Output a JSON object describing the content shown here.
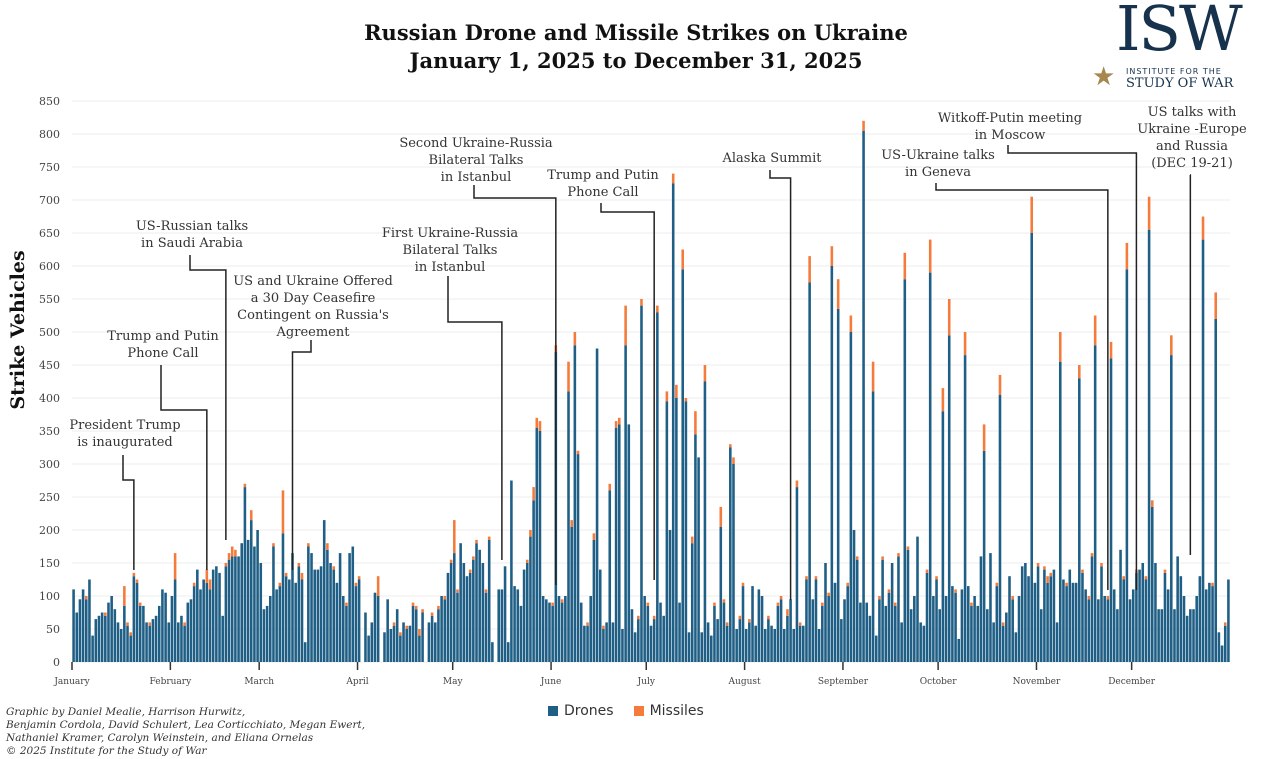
{
  "header": {
    "title": "Russian Drone and Missile Strikes on Ukraine",
    "subtitle": "January 1, 2025 to December 31, 2025"
  },
  "logo": {
    "text": "ISW",
    "line1": "INSTITUTE FOR THE",
    "line2": "STUDY OF WAR"
  },
  "credit": "Graphic by Daniel Mealie, Harrison Hurwitz,\nBenjamin Cordola, David Schulert, Lea Corticchiato, Megan Ewert,\nNathaniel Kramer, Carolyn Weinstein, and Eliana Ornelas\n© 2025 Institute for the Study of War",
  "chart_data": {
    "type": "bar",
    "stacked": true,
    "title": "Russian Drone and Missile Strikes on Ukraine",
    "subtitle": "January 1, 2025 to December 31, 2025",
    "xlabel": "",
    "ylabel": "Strike Vehicles",
    "ylim": [
      0,
      850
    ],
    "yticks": [
      0,
      50,
      100,
      150,
      200,
      250,
      300,
      350,
      400,
      450,
      500,
      550,
      600,
      650,
      700,
      750,
      800,
      850
    ],
    "grid": true,
    "legend": "bottom",
    "date_range": [
      "2025-01-01",
      "2025-12-31"
    ],
    "month_labels": [
      "January",
      "February",
      "March",
      "April",
      "May",
      "June",
      "July",
      "August",
      "September",
      "October",
      "November",
      "December"
    ],
    "colors": {
      "Drones": "#1f5f86",
      "Missiles": "#f47b3c"
    },
    "series": [
      {
        "name": "Drones",
        "values": [
          110,
          75,
          95,
          110,
          95,
          125,
          40,
          65,
          70,
          75,
          70,
          90,
          100,
          80,
          60,
          50,
          85,
          55,
          40,
          130,
          120,
          85,
          85,
          60,
          55,
          65,
          70,
          85,
          110,
          105,
          60,
          100,
          125,
          60,
          70,
          55,
          90,
          95,
          115,
          140,
          110,
          125,
          120,
          110,
          140,
          145,
          135,
          70,
          145,
          155,
          160,
          160,
          160,
          180,
          265,
          185,
          215,
          175,
          200,
          150,
          80,
          85,
          100,
          175,
          110,
          115,
          195,
          130,
          125,
          165,
          120,
          145,
          125,
          30,
          175,
          165,
          140,
          140,
          145,
          215,
          170,
          150,
          140,
          120,
          165,
          100,
          85,
          165,
          175,
          115,
          125,
          0,
          75,
          40,
          60,
          105,
          100,
          0,
          45,
          95,
          50,
          55,
          80,
          40,
          60,
          50,
          55,
          85,
          80,
          40,
          75,
          0,
          60,
          70,
          60,
          80,
          100,
          95,
          135,
          150,
          165,
          105,
          180,
          150,
          130,
          135,
          155,
          180,
          170,
          150,
          105,
          185,
          30,
          0,
          110,
          110,
          145,
          30,
          275,
          115,
          110,
          85,
          140,
          150,
          190,
          245,
          355,
          350,
          100,
          95,
          90,
          85,
          470,
          100,
          90,
          100,
          410,
          205,
          480,
          315,
          90,
          55,
          55,
          100,
          185,
          475,
          140,
          50,
          60,
          260,
          60,
          355,
          360,
          50,
          480,
          360,
          80,
          45,
          65,
          540,
          100,
          85,
          55,
          65,
          530,
          90,
          70,
          395,
          200,
          725,
          400,
          90,
          595,
          395,
          45,
          180,
          345,
          310,
          45,
          425,
          60,
          40,
          85,
          65,
          205,
          90,
          55,
          325,
          300,
          50,
          65,
          115,
          50,
          60,
          115,
          55,
          110,
          100,
          50,
          65,
          55,
          50,
          85,
          95,
          50,
          70,
          95,
          50,
          265,
          55,
          55,
          125,
          575,
          95,
          125,
          50,
          85,
          150,
          100,
          600,
          120,
          535,
          65,
          95,
          115,
          500,
          200,
          155,
          90,
          805,
          90,
          70,
          410,
          40,
          95,
          155,
          85,
          105,
          150,
          85,
          160,
          60,
          580,
          170,
          80,
          100,
          190,
          60,
          55,
          135,
          590,
          100,
          125,
          80,
          380,
          100,
          495,
          115,
          105,
          35,
          110,
          465,
          115,
          85,
          100,
          85,
          160,
          320,
          80,
          165,
          60,
          115,
          405,
          55,
          75,
          130,
          95,
          45,
          100,
          145,
          150,
          130,
          650,
          120,
          145,
          80,
          140,
          120,
          130,
          140,
          60,
          455,
          125,
          115,
          140,
          120,
          120,
          430,
          135,
          110,
          95,
          160,
          480,
          95,
          145,
          100,
          95,
          460,
          110,
          80,
          170,
          125,
          595,
          95,
          110,
          135,
          140,
          150,
          125,
          655,
          235,
          150,
          80,
          80,
          135,
          110,
          465,
          80,
          160,
          130,
          100,
          70,
          80,
          80,
          100,
          130,
          640,
          110,
          120,
          115,
          520,
          45,
          25,
          55,
          125
        ]
      },
      {
        "name": "Missiles",
        "values": [
          0,
          0,
          0,
          0,
          5,
          0,
          0,
          0,
          0,
          0,
          5,
          0,
          0,
          0,
          0,
          0,
          30,
          5,
          5,
          5,
          5,
          5,
          0,
          0,
          5,
          0,
          0,
          0,
          0,
          0,
          0,
          0,
          40,
          0,
          0,
          5,
          0,
          0,
          5,
          0,
          0,
          0,
          20,
          15,
          0,
          0,
          0,
          0,
          5,
          10,
          15,
          10,
          0,
          0,
          5,
          0,
          15,
          0,
          0,
          0,
          0,
          0,
          0,
          5,
          0,
          5,
          65,
          5,
          0,
          0,
          0,
          5,
          10,
          0,
          5,
          0,
          0,
          0,
          0,
          0,
          10,
          0,
          5,
          0,
          0,
          0,
          5,
          0,
          0,
          5,
          5,
          0,
          0,
          0,
          0,
          0,
          30,
          0,
          0,
          0,
          0,
          5,
          0,
          5,
          0,
          5,
          0,
          5,
          5,
          10,
          5,
          0,
          0,
          5,
          0,
          5,
          0,
          5,
          0,
          5,
          50,
          5,
          0,
          0,
          0,
          5,
          5,
          5,
          0,
          0,
          5,
          5,
          0,
          0,
          0,
          0,
          0,
          0,
          0,
          0,
          0,
          0,
          0,
          5,
          10,
          20,
          15,
          15,
          0,
          0,
          0,
          5,
          10,
          0,
          5,
          0,
          45,
          10,
          20,
          5,
          0,
          0,
          5,
          0,
          10,
          0,
          0,
          5,
          0,
          10,
          0,
          10,
          10,
          0,
          60,
          0,
          0,
          0,
          5,
          10,
          0,
          5,
          0,
          5,
          10,
          0,
          0,
          15,
          0,
          15,
          20,
          0,
          30,
          5,
          0,
          10,
          35,
          0,
          0,
          25,
          0,
          0,
          5,
          0,
          30,
          5,
          5,
          5,
          10,
          0,
          5,
          5,
          0,
          5,
          0,
          0,
          0,
          0,
          0,
          5,
          0,
          0,
          5,
          5,
          0,
          10,
          0,
          0,
          10,
          5,
          0,
          5,
          40,
          0,
          5,
          0,
          5,
          0,
          5,
          30,
          0,
          45,
          0,
          0,
          5,
          25,
          0,
          5,
          0,
          15,
          0,
          0,
          45,
          0,
          5,
          5,
          0,
          5,
          0,
          5,
          5,
          0,
          40,
          5,
          0,
          0,
          0,
          0,
          0,
          5,
          50,
          0,
          5,
          0,
          35,
          0,
          55,
          0,
          5,
          0,
          0,
          35,
          0,
          5,
          0,
          0,
          0,
          40,
          0,
          0,
          0,
          5,
          30,
          5,
          0,
          0,
          5,
          0,
          0,
          0,
          0,
          0,
          55,
          0,
          5,
          0,
          5,
          10,
          5,
          0,
          0,
          45,
          0,
          5,
          0,
          0,
          0,
          20,
          5,
          0,
          5,
          5,
          45,
          0,
          5,
          0,
          5,
          25,
          0,
          0,
          0,
          5,
          40,
          0,
          0,
          5,
          0,
          0,
          5,
          50,
          10,
          0,
          0,
          0,
          5,
          0,
          30,
          0,
          0,
          0,
          0,
          0,
          0,
          0,
          0,
          0,
          35,
          0,
          0,
          5,
          40,
          0,
          0,
          5,
          0
        ]
      }
    ],
    "annotations": [
      {
        "text": "President Trump\nis inaugurated",
        "date": "2025-01-20"
      },
      {
        "text": "Trump and Putin\nPhone Call",
        "date": "2025-02-12"
      },
      {
        "text": "US-Russian talks\nin Saudi Arabia",
        "date": "2025-02-18"
      },
      {
        "text": "US and Ukraine Offered\na 30 Day Ceasefire\nContingent on Russia's\nAgreement",
        "date": "2025-03-11"
      },
      {
        "text": "First Ukraine-Russia\nBilateral Talks\nin Istanbul",
        "date": "2025-05-16"
      },
      {
        "text": "Second Ukraine-Russia\nBilateral Talks\nin Istanbul",
        "date": "2025-06-02"
      },
      {
        "text": "Trump and Putin\nPhone Call",
        "date": "2025-07-03"
      },
      {
        "text": "Alaska Summit",
        "date": "2025-08-15"
      },
      {
        "text": "US-Ukraine talks\nin Geneva",
        "date": "2025-11-23"
      },
      {
        "text": "Witkoff-Putin meeting\nin Moscow",
        "date": "2025-12-02"
      },
      {
        "text": "US talks with\nUkraine -Europe\nand Russia\n(DEC 19-21)",
        "date": "2025-12-19"
      }
    ]
  }
}
